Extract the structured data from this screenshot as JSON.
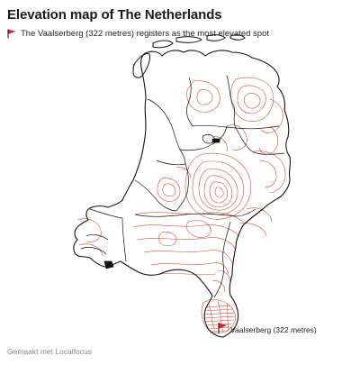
{
  "header": {
    "title": "Elevation map of The Netherlands",
    "subtitle": "The Vaalserberg (322 metres) registers as the most elevated spot"
  },
  "map": {
    "highlight_label": "Vaalserberg (322 metres)",
    "highlight_icon": "flag-icon",
    "border_color": "#111111",
    "contour_color": "#d9321f",
    "flag_color": "#e02020"
  },
  "footer": {
    "credit": "Gemaakt met Localfocus"
  }
}
